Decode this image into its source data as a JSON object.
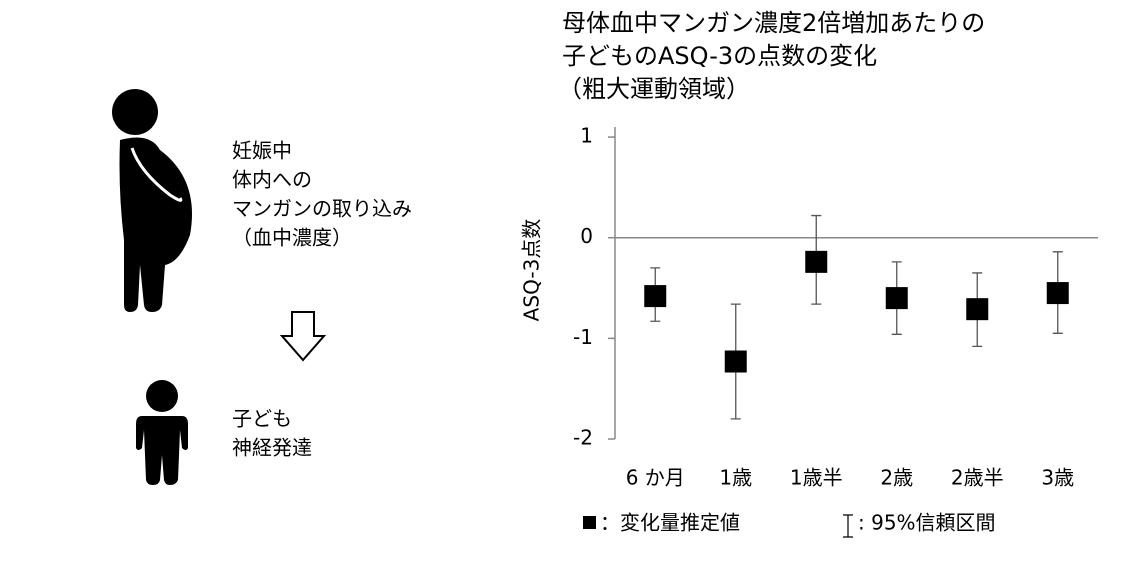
{
  "chart_data": {
    "type": "errorbar",
    "title_lines": [
      "母体血中マンガン濃度2倍増加あたりの",
      "子どものASQ-3の点数の変化",
      "（粗大運動領域）"
    ],
    "y_label": "ASQ-3点数",
    "categories": [
      "6 か月",
      "1歳",
      "1歳半",
      "2歳",
      "2歳半",
      "3歳"
    ],
    "values": [
      -0.58,
      -1.23,
      -0.24,
      -0.6,
      -0.71,
      -0.55
    ],
    "ci_low": [
      -0.83,
      -1.8,
      -0.66,
      -0.96,
      -1.08,
      -0.95
    ],
    "ci_high": [
      -0.3,
      -0.66,
      0.22,
      -0.24,
      -0.35,
      -0.14
    ],
    "color": "#000000",
    "ylim": [
      -2,
      1.1
    ],
    "yticks": [
      1,
      0,
      -1,
      -2
    ],
    "legend": [
      "：変化量推定値",
      ": 95%信頼区間"
    ]
  },
  "diagram": {
    "mother_lines": [
      "妊娠中",
      "体内への",
      "マンガンの取り込み",
      "（血中濃度）"
    ],
    "child_lines": [
      "子ども",
      "神経発達"
    ]
  }
}
